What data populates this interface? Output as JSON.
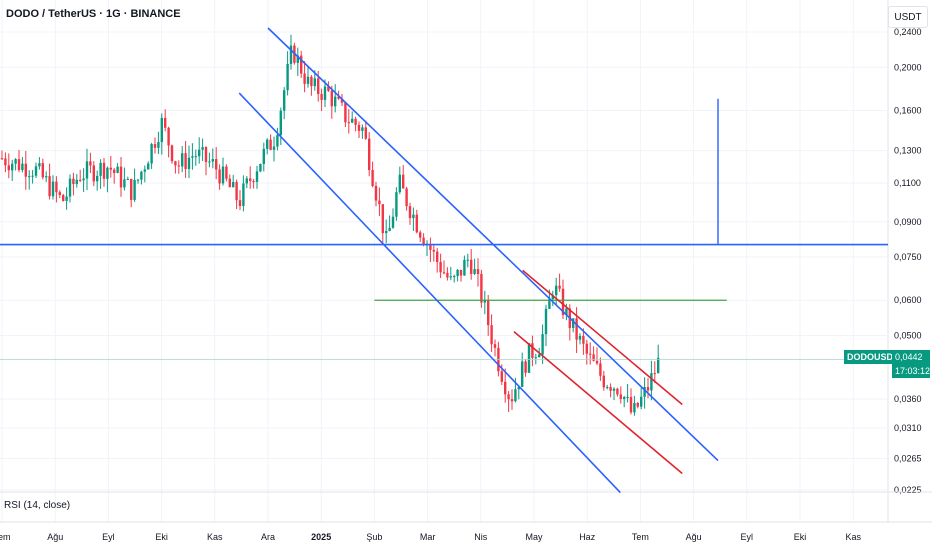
{
  "header": {
    "title": "DODO / TetherUS · 1G · BINANCE",
    "currency": "USDT"
  },
  "indicator": {
    "rsi_label": "RSI (14, close)"
  },
  "last_price": {
    "symbol": "DODOUSDT",
    "price": "0,0442",
    "countdown": "17:03:12"
  },
  "colors": {
    "up": "#089981",
    "down": "#f23645",
    "channel": "#2962ff",
    "channel_red": "#e0242f",
    "support": "#43a047"
  },
  "chart_data": {
    "type": "candlestick",
    "y_scale": "log",
    "y_ticks": [
      "0,2400",
      "0,2000",
      "0,1600",
      "0,1300",
      "0,1100",
      "0,0900",
      "0,0750",
      "0,0600",
      "0,0500",
      "0,0360",
      "0,0310",
      "0,0265",
      "0,0225"
    ],
    "x_ticks": [
      "Tem",
      "Ağu",
      "Eyl",
      "Eki",
      "Kas",
      "Ara",
      "2025",
      "Şub",
      "Mar",
      "Nis",
      "May",
      "Haz",
      "Tem",
      "Ağu",
      "Eyl",
      "Eki",
      "Kas"
    ],
    "x_ticks_bold": [
      "2025"
    ],
    "start_month": "2024-07",
    "ylim": [
      0.0225,
      0.245
    ],
    "last_close": 0.0442,
    "series_path": [
      [
        "2024-07-01",
        0.125
      ],
      [
        "2024-07-20",
        0.118
      ],
      [
        "2024-08-05",
        0.1
      ],
      [
        "2024-08-15",
        0.115
      ],
      [
        "2024-09-01",
        0.12
      ],
      [
        "2024-09-15",
        0.105
      ],
      [
        "2024-10-01",
        0.15
      ],
      [
        "2024-10-10",
        0.12
      ],
      [
        "2024-10-20",
        0.128
      ],
      [
        "2024-11-01",
        0.12
      ],
      [
        "2024-11-15",
        0.1
      ],
      [
        "2024-11-25",
        0.12
      ],
      [
        "2024-12-05",
        0.14
      ],
      [
        "2024-12-15",
        0.22
      ],
      [
        "2024-12-25",
        0.18
      ],
      [
        "2025-01-05",
        0.175
      ],
      [
        "2025-01-15",
        0.155
      ],
      [
        "2025-01-25",
        0.145
      ],
      [
        "2025-02-01",
        0.11
      ],
      [
        "2025-02-08",
        0.08
      ],
      [
        "2025-02-15",
        0.11
      ],
      [
        "2025-02-25",
        0.09
      ],
      [
        "2025-03-05",
        0.075
      ],
      [
        "2025-03-15",
        0.065
      ],
      [
        "2025-03-25",
        0.075
      ],
      [
        "2025-04-01",
        0.062
      ],
      [
        "2025-04-10",
        0.045
      ],
      [
        "2025-04-18",
        0.036
      ],
      [
        "2025-04-28",
        0.045
      ],
      [
        "2025-05-05",
        0.048
      ],
      [
        "2025-05-12",
        0.065
      ],
      [
        "2025-05-20",
        0.055
      ],
      [
        "2025-06-01",
        0.045
      ],
      [
        "2025-06-10",
        0.04
      ],
      [
        "2025-06-20",
        0.038
      ],
      [
        "2025-06-27",
        0.033
      ],
      [
        "2025-07-05",
        0.038
      ],
      [
        "2025-07-12",
        0.0442
      ]
    ],
    "horizontal_lines": [
      {
        "name": "resistance-blue",
        "value": 0.08
      },
      {
        "name": "support-green",
        "value": 0.06,
        "from": "2025-02-01",
        "to": "2025-08-20"
      },
      {
        "name": "last-price-line",
        "value": 0.0442
      }
    ],
    "vertical_marker": {
      "date": "2025-08-15",
      "from": 0.08,
      "to": 0.17
    },
    "channels": [
      {
        "name": "blue-channel-upper",
        "points": [
          [
            "2024-12-01",
            0.245
          ],
          [
            "2025-08-15",
            0.0262
          ]
        ]
      },
      {
        "name": "blue-channel-lower",
        "points": [
          [
            "2024-11-15",
            0.175
          ],
          [
            "2025-06-20",
            0.0222
          ]
        ]
      },
      {
        "name": "red-channel-upper",
        "points": [
          [
            "2025-04-25",
            0.07
          ],
          [
            "2025-07-25",
            0.035
          ]
        ]
      },
      {
        "name": "red-channel-lower",
        "points": [
          [
            "2025-04-20",
            0.051
          ],
          [
            "2025-07-25",
            0.0245
          ]
        ]
      }
    ]
  }
}
